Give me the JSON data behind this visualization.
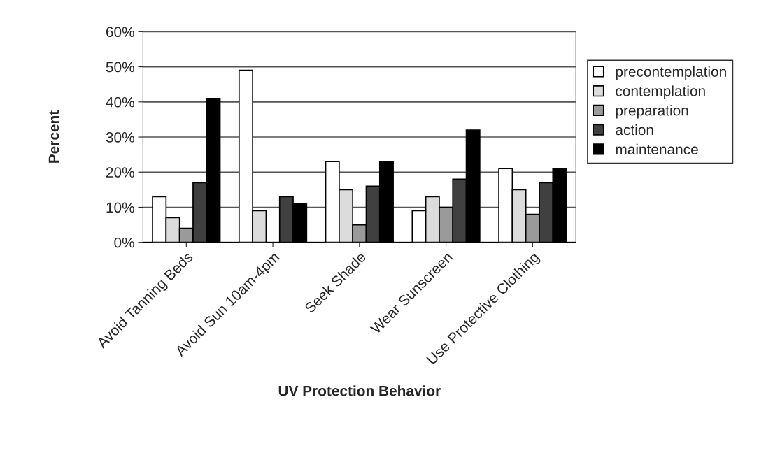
{
  "chart_data": {
    "type": "bar",
    "xlabel": "UV Protection Behavior",
    "ylabel": "Percent",
    "categories": [
      "Avoid Tanning Beds",
      "Avoid Sun 10am-4pm",
      "Seek Shade",
      "Wear Sunscreen",
      "Use Protective Clothing"
    ],
    "series": [
      {
        "name": "precontemplation",
        "color": "#ffffff",
        "values": [
          13,
          49,
          23,
          9,
          21
        ]
      },
      {
        "name": "contemplation",
        "color": "#dcdcdc",
        "values": [
          7,
          9,
          15,
          13,
          15
        ]
      },
      {
        "name": "preparation",
        "color": "#9a9a9a",
        "values": [
          4,
          null,
          5,
          10,
          8
        ]
      },
      {
        "name": "action",
        "color": "#404040",
        "values": [
          17,
          13,
          16,
          18,
          17
        ]
      },
      {
        "name": "maintenance",
        "color": "#000000",
        "values": [
          41,
          11,
          23,
          32,
          21
        ]
      }
    ],
    "ylim": [
      0,
      60
    ],
    "yticks": [
      {
        "value": 0,
        "label": "0%"
      },
      {
        "value": 10,
        "label": "10%"
      },
      {
        "value": 20,
        "label": "20%"
      },
      {
        "value": 30,
        "label": "30%"
      },
      {
        "value": 40,
        "label": "40%"
      },
      {
        "value": 50,
        "label": "50%"
      },
      {
        "value": 60,
        "label": "60%"
      }
    ],
    "grid": "y",
    "legend": "right"
  }
}
